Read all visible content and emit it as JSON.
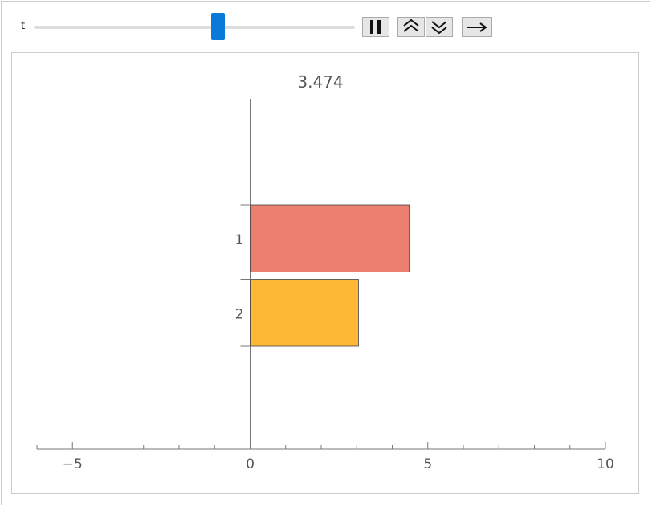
{
  "controls": {
    "slider_label": "t"
  },
  "chart_data": {
    "type": "bar",
    "orientation": "horizontal",
    "title": "3.474",
    "categories": [
      "1",
      "2"
    ],
    "series": [
      {
        "values": [
          4.48,
          3.05
        ],
        "colors": [
          "#ec7f6f",
          "#ffb835"
        ]
      }
    ],
    "xlim": [
      -6,
      10
    ],
    "xticks": [
      {
        "value": -5,
        "label": "−5"
      },
      0,
      5,
      10
    ],
    "xminorticks": [
      -6,
      -4,
      -3,
      -2,
      -1,
      1,
      2,
      3,
      4,
      6,
      7,
      8,
      9
    ]
  }
}
